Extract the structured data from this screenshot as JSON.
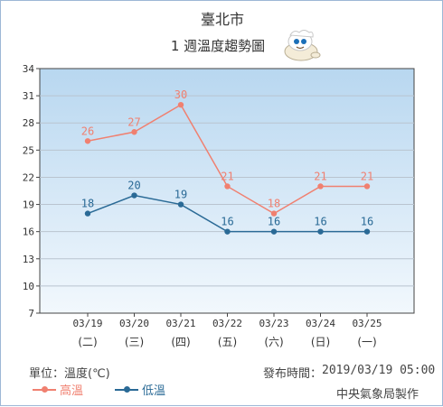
{
  "chart_data": {
    "type": "line",
    "title": "臺北市",
    "subtitle": "1 週溫度趨勢圖",
    "categories": [
      "03/19",
      "03/20",
      "03/21",
      "03/22",
      "03/23",
      "03/24",
      "03/25"
    ],
    "weekdays": [
      "(二)",
      "(三)",
      "(四)",
      "(五)",
      "(六)",
      "(日)",
      "(一)"
    ],
    "series": [
      {
        "name": "高溫",
        "values": [
          26,
          27,
          30,
          21,
          18,
          21,
          21
        ],
        "color": "#f08070"
      },
      {
        "name": "低溫",
        "values": [
          18,
          20,
          19,
          16,
          16,
          16,
          16
        ],
        "color": "#2a6a96"
      }
    ],
    "ylim": [
      7,
      34
    ],
    "yticks": [
      7,
      10,
      13,
      16,
      19,
      22,
      25,
      28,
      31,
      34
    ],
    "grid": true,
    "legend_position": "bottom-left"
  },
  "footer": {
    "unit_label": "單位：溫度(℃)",
    "issued_label": "發布時間：",
    "issued_time": "2019/03/19 05:00",
    "agency": "中央氣象局製作"
  },
  "mascot_icon": "cloud-mascot-icon"
}
